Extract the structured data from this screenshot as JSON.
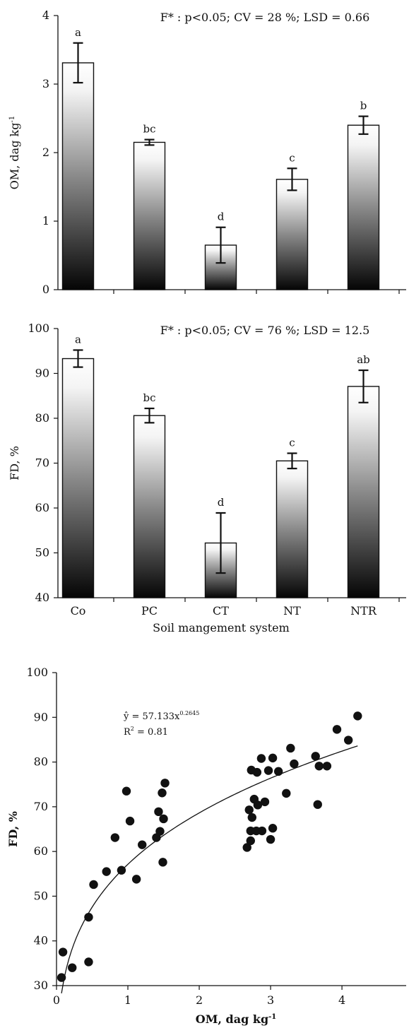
{
  "chart_data": [
    {
      "type": "bar",
      "annotation": "F* : p<0.05; CV = 28 %; LSD = 0.66",
      "ylabel": "OM, dag kg",
      "ylabel_sup": "-1",
      "ylim": [
        0,
        4
      ],
      "yticks": [
        "0",
        "1",
        "2",
        "3",
        "4"
      ],
      "categories": [
        "Co",
        "PC",
        "CT",
        "NT",
        "NTR"
      ],
      "values": [
        3.31,
        2.15,
        0.65,
        1.61,
        2.4
      ],
      "errors": [
        0.29,
        0.04,
        0.26,
        0.16,
        0.13
      ],
      "letters": [
        "a",
        "bc",
        "d",
        "c",
        "b"
      ]
    },
    {
      "type": "bar",
      "annotation": "F* : p<0.05; CV = 76 %; LSD = 12.5",
      "ylabel": "FD, %",
      "ylim": [
        40,
        100
      ],
      "yticks": [
        "40",
        "50",
        "60",
        "70",
        "80",
        "90",
        "100"
      ],
      "categories": [
        "Co",
        "PC",
        "CT",
        "NT",
        "NTR"
      ],
      "values": [
        93.3,
        80.6,
        52.2,
        70.5,
        87.1
      ],
      "errors": [
        1.9,
        1.6,
        6.7,
        1.7,
        3.6
      ],
      "letters": [
        "a",
        "bc",
        "d",
        "c",
        "ab"
      ],
      "xlabel": "Soil mangement system"
    },
    {
      "type": "scatter",
      "xlabel": "OM, dag kg",
      "xlabel_sup": "-1",
      "ylabel": "FD, %",
      "xlim": [
        0,
        4.9
      ],
      "ylim": [
        30,
        100
      ],
      "xticks": [
        "0",
        "1",
        "2",
        "3",
        "4"
      ],
      "yticks": [
        "30",
        "40",
        "50",
        "60",
        "70",
        "80",
        "90",
        "100"
      ],
      "equation": "ŷ = 57.133x",
      "equation_exp": "0.2645",
      "r2_label": "R",
      "r2_exp": "2",
      "r2_value": " = 0.81",
      "fit": {
        "a": 57.133,
        "b": 0.2645,
        "xmin": 0.07,
        "xmax": 4.22
      },
      "points": [
        [
          0.07,
          31.8
        ],
        [
          0.09,
          37.5
        ],
        [
          0.22,
          34.0
        ],
        [
          0.45,
          45.3
        ],
        [
          0.45,
          35.3
        ],
        [
          0.52,
          52.6
        ],
        [
          0.7,
          55.5
        ],
        [
          0.82,
          63.1
        ],
        [
          0.91,
          55.8
        ],
        [
          0.98,
          73.5
        ],
        [
          1.03,
          66.8
        ],
        [
          1.12,
          53.8
        ],
        [
          1.2,
          61.5
        ],
        [
          1.4,
          63.1
        ],
        [
          1.43,
          68.9
        ],
        [
          1.45,
          64.5
        ],
        [
          1.48,
          73.1
        ],
        [
          1.49,
          57.6
        ],
        [
          1.5,
          67.3
        ],
        [
          1.52,
          75.3
        ],
        [
          2.67,
          60.9
        ],
        [
          2.7,
          69.3
        ],
        [
          2.72,
          64.6
        ],
        [
          2.72,
          62.4
        ],
        [
          2.73,
          78.2
        ],
        [
          2.74,
          67.6
        ],
        [
          2.77,
          71.7
        ],
        [
          2.8,
          64.6
        ],
        [
          2.81,
          77.7
        ],
        [
          2.82,
          70.4
        ],
        [
          2.87,
          80.8
        ],
        [
          2.88,
          64.6
        ],
        [
          2.92,
          71.1
        ],
        [
          2.97,
          78.1
        ],
        [
          3.0,
          62.7
        ],
        [
          3.03,
          65.2
        ],
        [
          3.03,
          80.9
        ],
        [
          3.11,
          77.9
        ],
        [
          3.22,
          73.0
        ],
        [
          3.28,
          83.1
        ],
        [
          3.33,
          79.6
        ],
        [
          3.63,
          81.3
        ],
        [
          3.66,
          70.5
        ],
        [
          3.68,
          79.1
        ],
        [
          3.79,
          79.1
        ],
        [
          3.93,
          87.3
        ],
        [
          4.09,
          84.9
        ],
        [
          4.22,
          90.3
        ]
      ]
    }
  ]
}
